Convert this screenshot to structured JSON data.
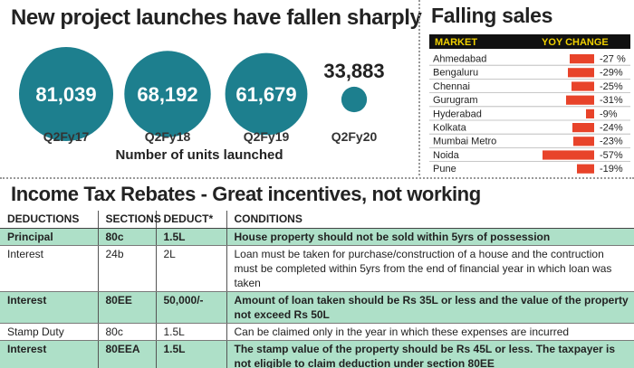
{
  "launch_chart": {
    "title": "New project launches have fallen sharply",
    "xlabel": "Number of units launched",
    "bubble_color": "#1d7f8e"
  },
  "sales_chart": {
    "title": "Falling sales",
    "header_market": "MARKET",
    "header_change": "YOY CHANGE",
    "header_bg": "#111111",
    "bar_color": "#e8432a"
  },
  "chart_data": [
    {
      "type": "bubble",
      "title": "New project launches have fallen sharply",
      "xlabel": "Number of units launched",
      "categories": [
        "Q2Fy17",
        "Q2Fy18",
        "Q2Fy19",
        "Q2Fy20"
      ],
      "value_labels": [
        "81,039",
        "68,192",
        "61,679",
        "33,883"
      ],
      "values": [
        81039,
        68192,
        61679,
        33883
      ]
    },
    {
      "type": "bar",
      "orientation": "horizontal",
      "title": "Falling sales",
      "xlabel": "YOY CHANGE",
      "ylabel": "MARKET",
      "categories": [
        "Ahmedabad",
        "Bengaluru",
        "Chennai",
        "Gurugram",
        "Hyderabad",
        "Kolkata",
        "Mumbai Metro",
        "Noida",
        "Pune"
      ],
      "value_labels": [
        "-27 %",
        "-29%",
        "-25%",
        "-31%",
        "-9%",
        "-24%",
        "-23%",
        "-57%",
        "-19%"
      ],
      "values": [
        -27,
        -29,
        -25,
        -31,
        -9,
        -24,
        -23,
        -57,
        -19
      ]
    }
  ],
  "tax_table": {
    "title": "Income Tax Rebates - Great incentives, not working",
    "headers": [
      "DEDUCTIONS",
      "SECTIONS",
      "DEDUCT*",
      "CONDITIONS"
    ],
    "highlight_color": "#aee0c8",
    "rows": [
      {
        "deduction": "Principal",
        "section": "80c",
        "amount": "1.5L",
        "condition": "House property should not be sold within 5yrs of possession",
        "highlight": true
      },
      {
        "deduction": "Interest",
        "section": "24b",
        "amount": "2L",
        "condition": "Loan must be taken for purchase/construction of a house and the contruction must be completed within 5yrs from the end of financial year in which loan was taken",
        "highlight": false
      },
      {
        "deduction": "Interest",
        "section": "80EE",
        "amount": "50,000/-",
        "condition": "Amount of loan taken should be Rs 35L or less and the value of the property not exceed Rs 50L",
        "highlight": true
      },
      {
        "deduction": "Stamp Duty",
        "section": "80c",
        "amount": "1.5L",
        "condition": "Can be claimed only in the year in which these expenses are incurred",
        "highlight": false
      },
      {
        "deduction": "Interest",
        "section": "80EEA",
        "amount": "1.5L",
        "condition": "The stamp value of the property  should be Rs 45L or less. The taxpayer is not eligible to claim deduction under section 80EE",
        "highlight": true
      }
    ]
  }
}
